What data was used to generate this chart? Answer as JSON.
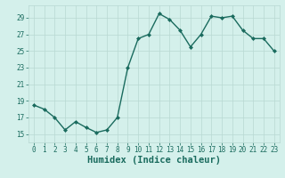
{
  "x": [
    0,
    1,
    2,
    3,
    4,
    5,
    6,
    7,
    8,
    9,
    10,
    11,
    12,
    13,
    14,
    15,
    16,
    17,
    18,
    19,
    20,
    21,
    22,
    23
  ],
  "y": [
    18.5,
    18.0,
    17.0,
    15.5,
    16.5,
    15.8,
    15.2,
    15.5,
    17.0,
    23.0,
    26.5,
    27.0,
    29.5,
    28.8,
    27.5,
    25.5,
    27.0,
    29.2,
    29.0,
    29.2,
    27.5,
    26.5,
    26.5,
    25.0
  ],
  "line_color": "#1a6b5e",
  "marker": "D",
  "marker_size": 2.0,
  "bg_color": "#d4f0eb",
  "grid_color": "#b8d8d2",
  "xlabel": "Humidex (Indice chaleur)",
  "xlim": [
    -0.5,
    23.5
  ],
  "ylim": [
    14.0,
    30.5
  ],
  "yticks": [
    15,
    17,
    19,
    21,
    23,
    25,
    27,
    29
  ],
  "xticks": [
    0,
    1,
    2,
    3,
    4,
    5,
    6,
    7,
    8,
    9,
    10,
    11,
    12,
    13,
    14,
    15,
    16,
    17,
    18,
    19,
    20,
    21,
    22,
    23
  ],
  "tick_fontsize": 5.5,
  "xlabel_fontsize": 7.5,
  "line_width": 1.0
}
